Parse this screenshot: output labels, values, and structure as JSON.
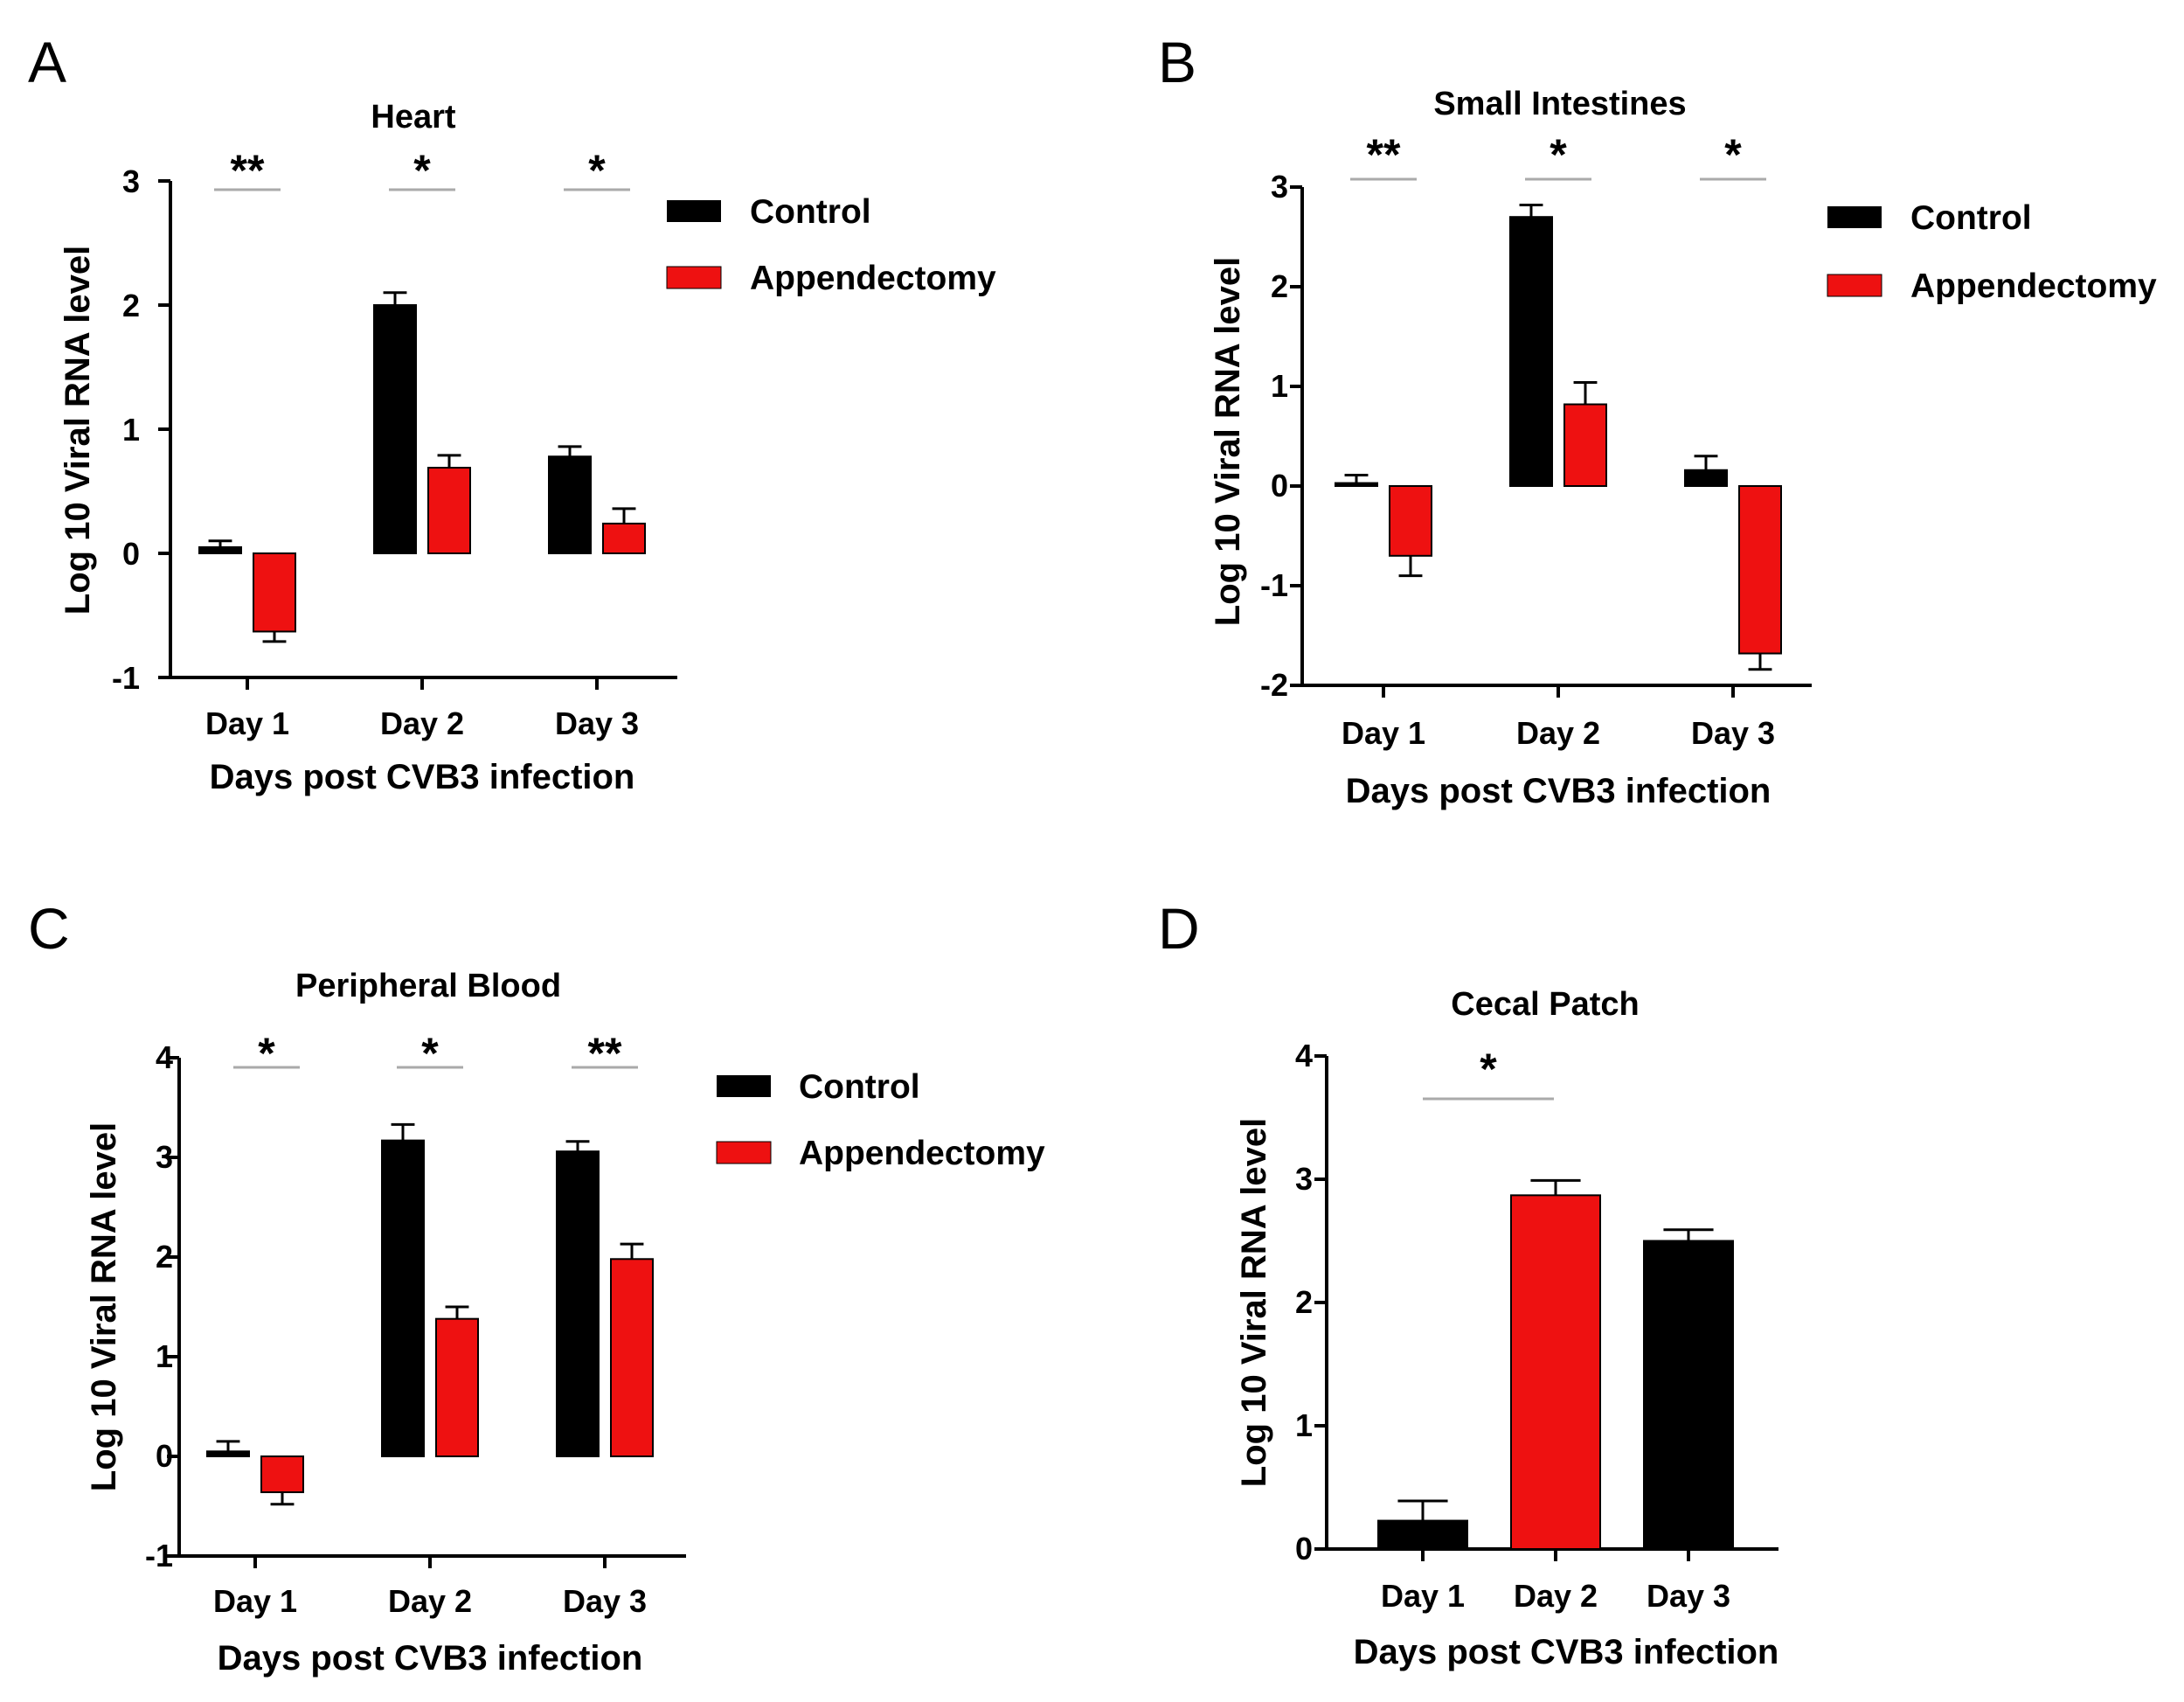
{
  "colors": {
    "control": "#000000",
    "appendectomy": "#ee1111",
    "sig_line": "#aaaaaa",
    "axis": "#000000",
    "background": "#ffffff"
  },
  "chart_data": [
    {
      "panel": "A",
      "type": "bar",
      "title": "Heart",
      "xlabel": "Days post CVB3 infection",
      "ylabel": "Log 10 Viral RNA level",
      "ylim": [
        -1,
        3
      ],
      "yticks": [
        "3",
        "2",
        "1",
        "0",
        "-1"
      ],
      "categories": [
        "Day 1",
        "Day 2",
        "Day 3"
      ],
      "series": [
        {
          "name": "Control",
          "color": "#000000",
          "values": [
            0.05,
            2.0,
            0.78
          ],
          "errors": [
            0.05,
            0.1,
            0.08
          ]
        },
        {
          "name": "Appendectomy",
          "color": "#ee1111",
          "values": [
            -0.63,
            0.69,
            0.24
          ],
          "errors": [
            0.08,
            0.1,
            0.12
          ]
        }
      ],
      "significance": [
        "**",
        "*",
        "*"
      ],
      "legend": [
        "Control",
        "Appendectomy"
      ],
      "legend_position": "right"
    },
    {
      "panel": "B",
      "type": "bar",
      "title": "Small Intestines",
      "xlabel": "Days post CVB3 infection",
      "ylabel": "Log 10 Viral RNA level",
      "ylim": [
        -2,
        3
      ],
      "yticks": [
        "3",
        "2",
        "1",
        "0",
        "-1",
        "-2"
      ],
      "categories": [
        "Day 1",
        "Day 2",
        "Day 3"
      ],
      "series": [
        {
          "name": "Control",
          "color": "#000000",
          "values": [
            0.03,
            2.7,
            0.16
          ],
          "errors": [
            0.08,
            0.12,
            0.14
          ]
        },
        {
          "name": "Appendectomy",
          "color": "#ee1111",
          "values": [
            -0.7,
            0.82,
            -1.68
          ],
          "errors": [
            0.2,
            0.22,
            0.16
          ]
        }
      ],
      "significance": [
        "**",
        "*",
        "*"
      ],
      "legend": [
        "Control",
        "Appendectomy"
      ],
      "legend_position": "right"
    },
    {
      "panel": "C",
      "type": "bar",
      "title": "Peripheral Blood",
      "xlabel": "Days post CVB3 infection",
      "ylabel": "Log 10 Viral RNA level",
      "ylim": [
        -1,
        4
      ],
      "yticks": [
        "4",
        "3",
        "2",
        "1",
        "0",
        "-1"
      ],
      "categories": [
        "Day 1",
        "Day 2",
        "Day 3"
      ],
      "series": [
        {
          "name": "Control",
          "color": "#000000",
          "values": [
            0.05,
            3.17,
            3.06
          ],
          "errors": [
            0.1,
            0.16,
            0.1
          ]
        },
        {
          "name": "Appendectomy",
          "color": "#ee1111",
          "values": [
            -0.36,
            1.38,
            1.98
          ],
          "errors": [
            0.12,
            0.12,
            0.15
          ]
        }
      ],
      "significance": [
        "*",
        "*",
        "**"
      ],
      "legend": [
        "Control",
        "Appendectomy"
      ],
      "legend_position": "right"
    },
    {
      "panel": "D",
      "type": "bar",
      "title": "Cecal Patch",
      "xlabel": "Days post CVB3 infection",
      "ylabel": "Log 10 Viral RNA level",
      "ylim": [
        0,
        4
      ],
      "yticks": [
        "4",
        "3",
        "2",
        "1",
        "0"
      ],
      "categories": [
        "Day 1",
        "Day 2",
        "Day 3"
      ],
      "values": [
        0.23,
        2.87,
        2.5
      ],
      "errors": [
        0.16,
        0.12,
        0.09
      ],
      "colors": [
        "#000000",
        "#ee1111",
        "#000000"
      ],
      "significance": [
        {
          "from": "Day 1",
          "to": "Day 2",
          "label": "*"
        }
      ]
    }
  ]
}
